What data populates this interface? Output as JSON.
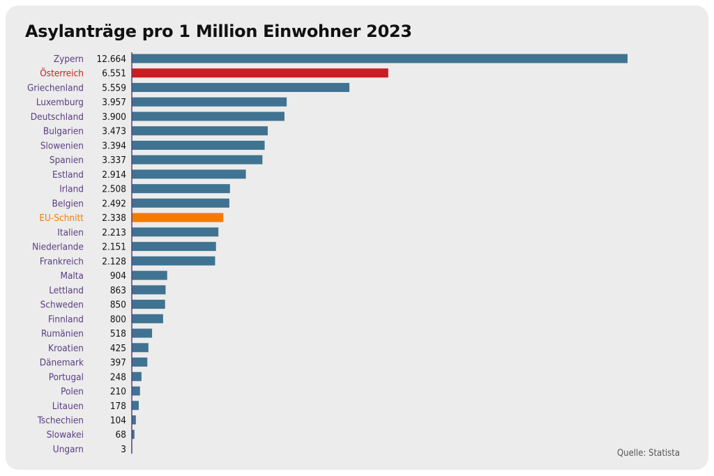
{
  "colors": {
    "bar": "#3f7391",
    "highlight_austria": "#cc1b22",
    "highlight_eu": "#f07d00",
    "label": "#5a3c82",
    "axis": "#5a3c82",
    "value_text": "#111111"
  },
  "source": "Quelle: Statista",
  "chart_data": {
    "type": "bar",
    "orientation": "horizontal",
    "title": "Asylanträge pro 1 Million Einwohner 2023",
    "xlim": [
      0,
      12664
    ],
    "grid": false,
    "legend": "none",
    "categories": [
      "Zypern",
      "Österreich",
      "Griechenland",
      "Luxemburg",
      "Deutschland",
      "Bulgarien",
      "Slowenien",
      "Spanien",
      "Estland",
      "Irland",
      "Belgien",
      "EU-Schnitt",
      "Italien",
      "Niederlande",
      "Frankreich",
      "Malta",
      "Lettland",
      "Schweden",
      "Finnland",
      "Rumänien",
      "Kroatien",
      "Dänemark",
      "Portugal",
      "Polen",
      "Litauen",
      "Tschechien",
      "Slowakei",
      "Ungarn"
    ],
    "values": [
      12664,
      6551,
      5559,
      3957,
      3900,
      3473,
      3394,
      3337,
      2914,
      2508,
      2492,
      2338,
      2213,
      2151,
      2128,
      904,
      863,
      850,
      800,
      518,
      425,
      397,
      248,
      210,
      178,
      104,
      68,
      3
    ],
    "value_labels": [
      "12.664",
      "6.551",
      "5.559",
      "3.957",
      "3.900",
      "3.473",
      "3.394",
      "3.337",
      "2.914",
      "2.508",
      "2.492",
      "2.338",
      "2.213",
      "2.151",
      "2.128",
      "904",
      "863",
      "850",
      "800",
      "518",
      "425",
      "397",
      "248",
      "210",
      "178",
      "104",
      "68",
      "3"
    ],
    "highlights": {
      "Österreich": "highlight_austria",
      "EU-Schnitt": "highlight_eu"
    }
  }
}
